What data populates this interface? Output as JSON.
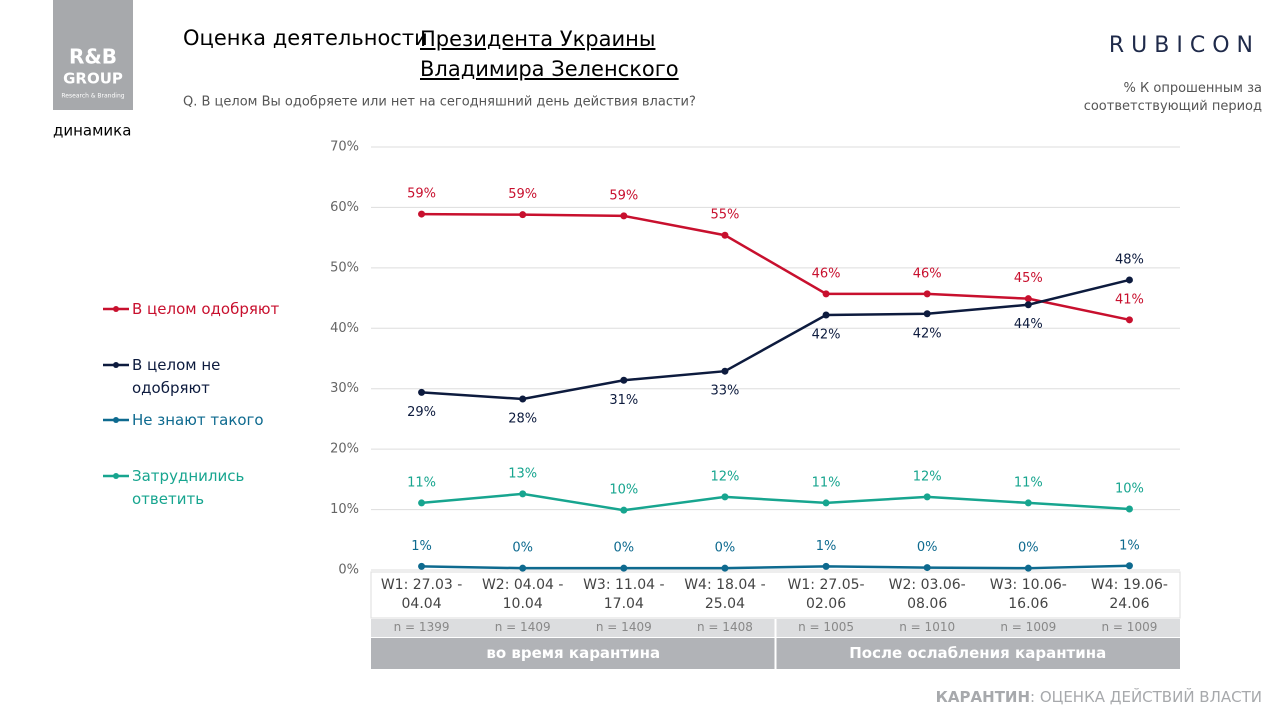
{
  "header": {
    "title": "Оценка деятельности",
    "title_emphasis": "Президента Украины Владимира Зеленского",
    "question": "Q. В целом Вы одобряете или нет на сегодняшний день действия власти?",
    "section": "динамика",
    "logo_left": [
      "R&B",
      "GROUP",
      "Research & Branding"
    ],
    "logo_right": "RUBICON",
    "note": "% К опрошенным за соответствующий период"
  },
  "chart_data": {
    "type": "line",
    "categories": [
      "W1: 27.03 - 04.04",
      "W2: 04.04 - 10.04",
      "W3: 11.04 - 17.04",
      "W4: 18.04 - 25.04",
      "W1: 27.05-02.06",
      "W2: 03.06-08.06",
      "W3: 10.06-16.06",
      "W4: 19.06-24.06"
    ],
    "sample_sizes": [
      "n = 1399",
      "n = 1409",
      "n = 1409",
      "n = 1408",
      "n = 1005",
      "n = 1010",
      "n = 1009",
      "n = 1009"
    ],
    "groups": [
      {
        "label": "во время карантина",
        "span": 4
      },
      {
        "label": "После ослабления карантина",
        "span": 4
      }
    ],
    "series": [
      {
        "name": "В целом одобряют",
        "color": "#c8102e",
        "values": [
          58.9,
          58.8,
          58.6,
          55.4,
          45.7,
          45.7,
          44.9,
          41.4
        ],
        "value_labels": [
          "59%",
          "59%",
          "59%",
          "55%",
          "46%",
          "46%",
          "45%",
          "41%"
        ]
      },
      {
        "name": "В целом не одобряют",
        "color": "#0d1b3e",
        "values": [
          29.4,
          28.3,
          31.4,
          32.9,
          42.2,
          42.4,
          43.9,
          48.0
        ],
        "value_labels": [
          "29%",
          "28%",
          "31%",
          "33%",
          "42%",
          "42%",
          "44%",
          "48%"
        ]
      },
      {
        "name": "Не знают такого",
        "color": "#0e6a8f",
        "values": [
          0.6,
          0.3,
          0.3,
          0.3,
          0.6,
          0.4,
          0.3,
          0.7
        ],
        "value_labels": [
          "1%",
          "0%",
          "0%",
          "0%",
          "1%",
          "0%",
          "0%",
          "1%"
        ]
      },
      {
        "name": "Затруднились ответить",
        "color": "#17a58f",
        "values": [
          11.1,
          12.6,
          9.9,
          12.1,
          11.1,
          12.1,
          11.1,
          10.1
        ],
        "value_labels": [
          "11%",
          "13%",
          "10%",
          "12%",
          "11%",
          "12%",
          "11%",
          "10%"
        ]
      }
    ],
    "ylim": [
      0,
      70
    ],
    "yticks": [
      {
        "value": 0,
        "label": "0%"
      },
      {
        "value": 10,
        "label": "10%"
      },
      {
        "value": 20,
        "label": "20%"
      },
      {
        "value": 30,
        "label": "30%"
      },
      {
        "value": 40,
        "label": "40%"
      },
      {
        "value": 50,
        "label": "50%"
      },
      {
        "value": 60,
        "label": "60%"
      },
      {
        "value": 70,
        "label": "70%"
      }
    ],
    "grid": true
  },
  "footer": {
    "topic": "КАРАНТИН",
    "subtitle": ": ОЦЕНКА ДЕЙСТВИЙ ВЛАСТИ"
  }
}
